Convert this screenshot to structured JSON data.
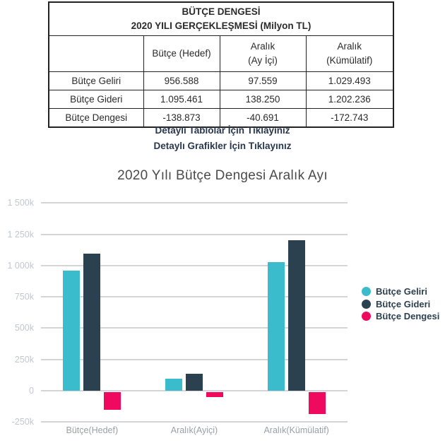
{
  "table": {
    "title_line1": "BÜTÇE DENGESİ",
    "title_line2": "2020 YILI GERÇEKLEŞMESİ (Milyon TL)",
    "col_headers": [
      "",
      "Bütçe (Hedef)",
      "Aralık\n(Ay İçi)",
      "Aralık\n(Kümülatif)"
    ],
    "rows": [
      {
        "label": "Bütçe Geliri",
        "values": [
          "956.588",
          "97.559",
          "1.029.493"
        ]
      },
      {
        "label": "Bütçe Gideri",
        "values": [
          "1.095.461",
          "138.250",
          "1.202.236"
        ]
      },
      {
        "label": "Bütçe Dengesi",
        "values": [
          "-138.873",
          "-40.691",
          "-172.743"
        ]
      }
    ]
  },
  "links": {
    "tables": "Detaylı Tablolar İçin Tıklayınız",
    "graphs": "Detaylı Grafikler İçin Tıklayınız"
  },
  "chart_data": {
    "type": "bar",
    "title": "2020 Yılı Bütçe Dengesi Aralık Ayı",
    "categories": [
      "Bütçe(Hedef)",
      "Aralık(Ayiçi)",
      "Aralık(Kümülatif)"
    ],
    "series": [
      {
        "name": "Bütçe Geliri",
        "color": "#3bbccd",
        "values": [
          956588,
          97559,
          1029493
        ]
      },
      {
        "name": "Bütçe Gideri",
        "color": "#2b4150",
        "values": [
          1095461,
          138250,
          1202236
        ]
      },
      {
        "name": "Bütçe Dengesi",
        "color": "#ef0a60",
        "values": [
          -138873,
          -40691,
          -172743
        ]
      }
    ],
    "y_ticks": [
      "1 500k",
      "1 250k",
      "1 000k",
      "750k",
      "500k",
      "250k",
      "0",
      "-250k"
    ],
    "y_tick_values": [
      1500000,
      1250000,
      1000000,
      750000,
      500000,
      250000,
      0,
      -250000
    ],
    "ylim": [
      -250000,
      1500000
    ],
    "grid": true,
    "legend_position": "right"
  },
  "colors": {
    "link_text": "#29374f",
    "legend_text": "#2b4150",
    "gridline": "#d3d5d9",
    "y_tick_text": "#c3c7cc",
    "x_label_text": "#9aa0a6",
    "table_border": "#222222"
  }
}
